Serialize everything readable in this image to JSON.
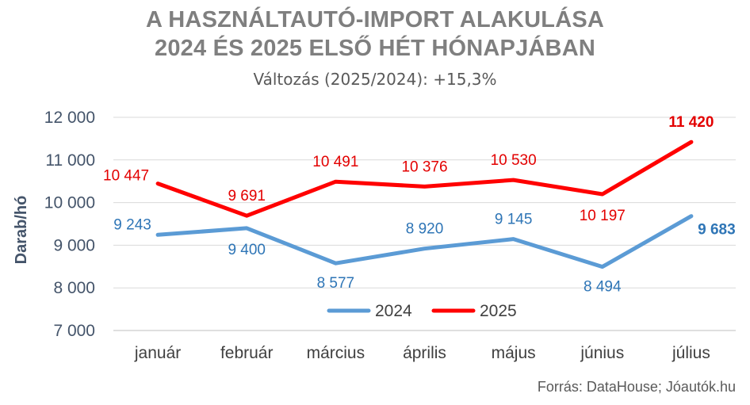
{
  "title_line1": "A HASZNÁLTAUTÓ-IMPORT ALAKULÁSA",
  "title_line2": "2024 ÉS 2025 ELSŐ HÉT HÓNAPJÁBAN",
  "subtitle": "Változás (2025/2024): +15,3%",
  "source": "Forrás: DataHouse; Jóautók.hu",
  "chart_data": {
    "type": "line",
    "categories": [
      "január",
      "február",
      "március",
      "április",
      "május",
      "június",
      "július"
    ],
    "ylabel": "Darab/hó",
    "ylim": [
      7000,
      12000
    ],
    "yticks": [
      7000,
      8000,
      9000,
      10000,
      11000,
      12000
    ],
    "ytick_labels": [
      "7 000",
      "8 000",
      "9 000",
      "10 000",
      "11 000",
      "12 000"
    ],
    "grid": true,
    "legend": "bottom",
    "series": [
      {
        "name": "2024",
        "color": "#5b9bd5",
        "values": [
          9243,
          9400,
          8577,
          8920,
          9145,
          8494,
          9683
        ],
        "labels": [
          "9 243",
          "9 400",
          "8 577",
          "8 920",
          "9 145",
          "8 494",
          "9 683"
        ]
      },
      {
        "name": "2025",
        "color": "#ff0000",
        "values": [
          10447,
          9691,
          10491,
          10376,
          10530,
          10197,
          11420
        ],
        "labels": [
          "10 447",
          "9 691",
          "10 491",
          "10 376",
          "10 530",
          "10 197",
          "11 420"
        ]
      }
    ]
  }
}
